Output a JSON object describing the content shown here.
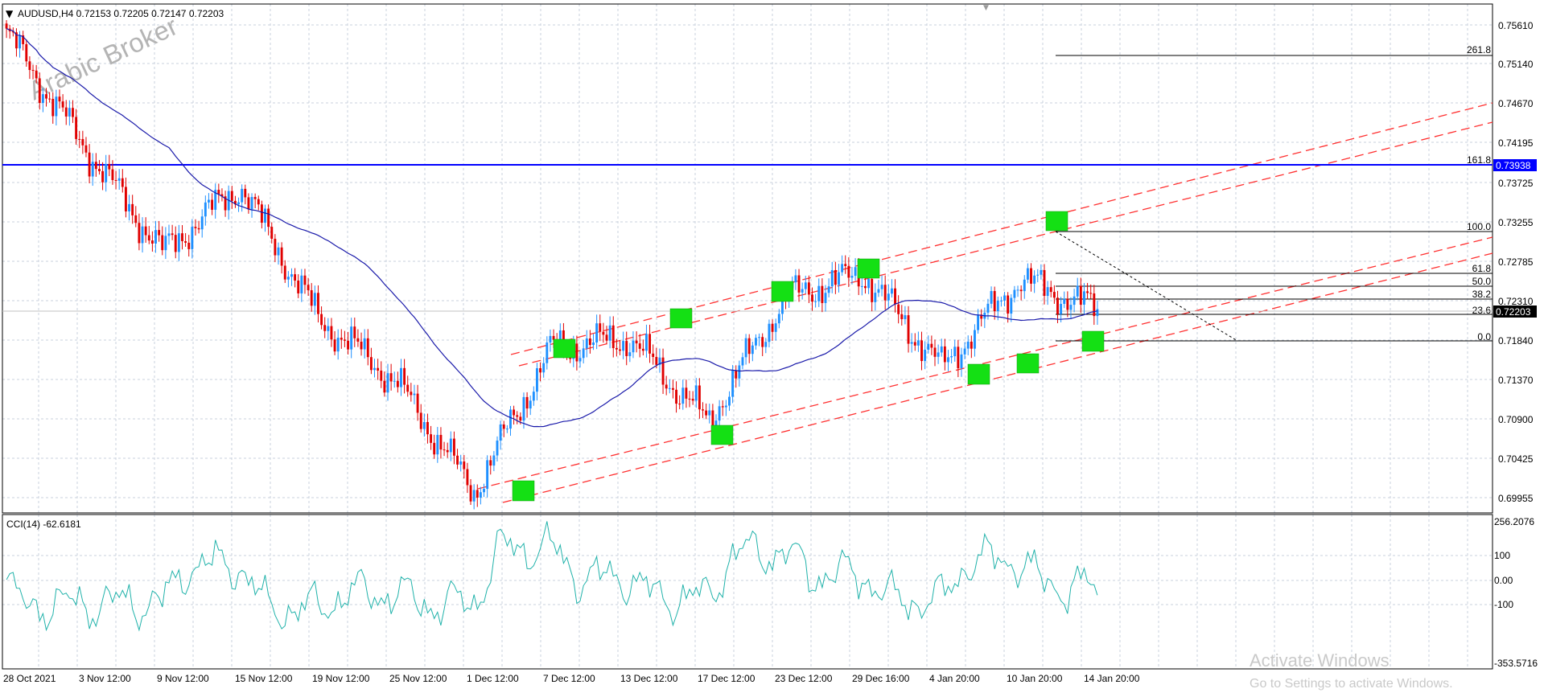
{
  "header": {
    "symbol_line": "AUDUSD,H4  0.72153 0.72205 0.72147 0.72203"
  },
  "watermark": {
    "broker_text": "Arabic Broker",
    "windows_title": "Activate Windows",
    "windows_subtitle": "Go to Settings to activate Windows."
  },
  "colors": {
    "bull_candle": "#1e90ff",
    "bear_candle": "#e00000",
    "moving_average": "#1a1aaa",
    "channel_lines": "#ff3030",
    "horizontal_level": "#0000ff",
    "cci_line": "#20b2aa",
    "marker_fill": "#14e014",
    "grid": "#c8d0dc"
  },
  "price_axis": {
    "ticks": [
      "0.75610",
      "0.75140",
      "0.74670",
      "0.74195",
      "0.73725",
      "0.73255",
      "0.72785",
      "0.72310",
      "0.71840",
      "0.71370",
      "0.70900",
      "0.70425",
      "0.69955"
    ],
    "current_price_tag": "0.72203",
    "level_tag": "0.73938"
  },
  "time_axis": {
    "labels": [
      "28 Oct 2021",
      "3 Nov 12:00",
      "9 Nov 12:00",
      "15 Nov 12:00",
      "19 Nov 12:00",
      "25 Nov 12:00",
      "1 Dec 12:00",
      "7 Dec 12:00",
      "13 Dec 12:00",
      "17 Dec 12:00",
      "23 Dec 12:00",
      "29 Dec 16:00",
      "4 Jan 20:00",
      "10 Jan 20:00",
      "14 Jan 20:00"
    ]
  },
  "fibonacci": {
    "levels": [
      "261.8",
      "161.8",
      "100.0",
      "61.8",
      "50.0",
      "38.2",
      "23.6",
      "0.0"
    ]
  },
  "indicator": {
    "name": "CCI(14) -62.6181",
    "ticks": [
      "256.2076",
      "100",
      "0.00",
      "-100",
      "-353.5716"
    ]
  },
  "chart_data": {
    "type": "line",
    "symbol": "AUDUSD",
    "timeframe": "H4",
    "x": [
      "28 Oct 2021",
      "3 Nov 12:00",
      "9 Nov 12:00",
      "15 Nov 12:00",
      "19 Nov 12:00",
      "25 Nov 12:00",
      "1 Dec 12:00",
      "7 Dec 12:00",
      "13 Dec 12:00",
      "17 Dec 12:00",
      "23 Dec 12:00",
      "29 Dec 16:00",
      "4 Jan 20:00",
      "10 Jan 20:00",
      "14 Jan 20:00"
    ],
    "series": [
      {
        "values": [
          0.7545,
          0.7412,
          0.7288,
          0.7366,
          0.721,
          0.7135,
          0.7005,
          0.7175,
          0.7185,
          0.7088,
          0.7235,
          0.7262,
          0.7152,
          0.7255,
          0.722
        ]
      }
    ],
    "ylim": [
      0.698,
      0.758
    ],
    "grid": true,
    "open": 0.72153,
    "high": 0.72205,
    "low": 0.72147,
    "close": 0.72203
  }
}
